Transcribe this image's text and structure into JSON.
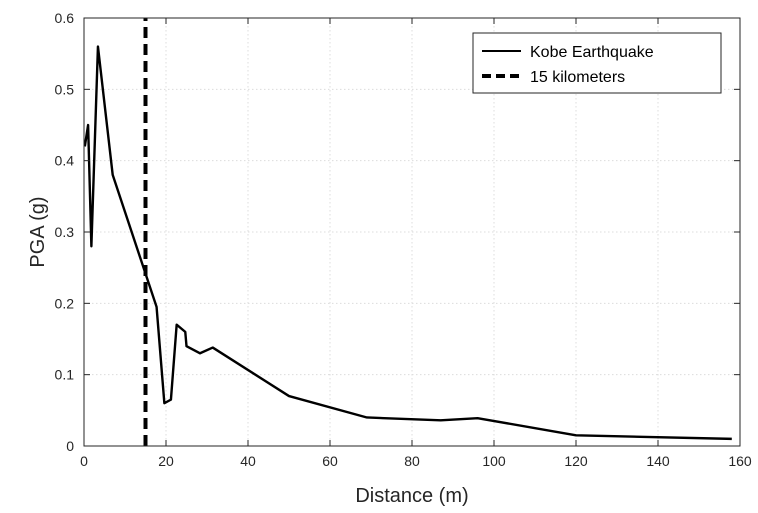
{
  "chart_data": {
    "type": "line",
    "title": "",
    "xlabel": "Distance (m)",
    "ylabel": "PGA (g)",
    "xlim": [
      0,
      160
    ],
    "ylim": [
      0,
      0.6
    ],
    "xticks": [
      0,
      20,
      40,
      60,
      80,
      100,
      120,
      140,
      160
    ],
    "yticks": [
      0,
      0.1,
      0.2,
      0.3,
      0.4,
      0.5,
      0.6
    ],
    "xtick_labels": [
      "0",
      "20",
      "40",
      "60",
      "80",
      "100",
      "120",
      "140",
      "160"
    ],
    "ytick_labels": [
      "0",
      "0.1",
      "0.2",
      "0.3",
      "0.4",
      "0.5",
      "0.6"
    ],
    "grid": true,
    "legend_position": "top-right",
    "series": [
      {
        "name": "Kobe Earthquake",
        "style": "solid",
        "color": "#000000",
        "x": [
          0.2,
          1,
          1.8,
          3.4,
          7,
          17.7,
          19.6,
          21.2,
          22.6,
          24.7,
          25,
          28.3,
          31.4,
          50,
          69,
          87,
          96,
          120,
          158
        ],
        "y": [
          0.42,
          0.45,
          0.28,
          0.56,
          0.38,
          0.195,
          0.06,
          0.065,
          0.17,
          0.16,
          0.14,
          0.13,
          0.138,
          0.07,
          0.04,
          0.036,
          0.039,
          0.015,
          0.01
        ]
      },
      {
        "name": "15 kilometers",
        "style": "dashed",
        "color": "#000000",
        "x": [
          15,
          15
        ],
        "y": [
          0,
          0.6
        ]
      }
    ]
  }
}
